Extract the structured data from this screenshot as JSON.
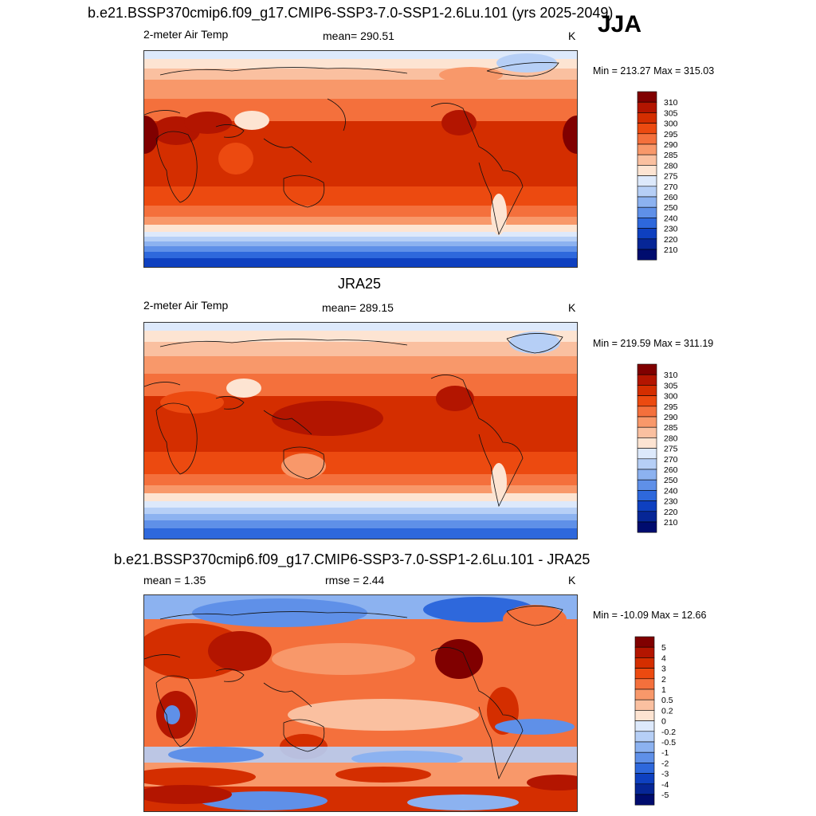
{
  "header": {
    "title": "b.e21.BSSP370cmip6.f09_g17.CMIP6-SSP3-7.0-SSP1-2.6Lu.101 (yrs 2025-2049)",
    "season": "JJA"
  },
  "panels": [
    {
      "id": "model",
      "subtitle": "",
      "left_label": "2-meter Air Temp",
      "center_label": "mean= 290.51",
      "unit": "K",
      "minmax": "Min = 213.27 Max = 315.03"
    },
    {
      "id": "obs",
      "subtitle": "JRA25",
      "left_label": "2-meter Air Temp",
      "center_label": "mean= 289.15",
      "unit": "K",
      "minmax": "Min = 219.59 Max = 311.19"
    },
    {
      "id": "diff",
      "subtitle": "b.e21.BSSP370cmip6.f09_g17.CMIP6-SSP3-7.0-SSP1-2.6Lu.101 - JRA25",
      "left_label": "mean =   1.35",
      "center_label": "rmse =   2.44",
      "unit": "K",
      "minmax": "Min = -10.09 Max =  12.66"
    }
  ],
  "colorbars": {
    "temperature": {
      "labels": [
        "310",
        "305",
        "300",
        "295",
        "290",
        "285",
        "280",
        "275",
        "270",
        "260",
        "250",
        "240",
        "230",
        "220",
        "210"
      ],
      "colors": [
        "#800000",
        "#b31500",
        "#d42e00",
        "#ec4a10",
        "#f4703c",
        "#f8986a",
        "#fac0a0",
        "#fde4d2",
        "#dde9fb",
        "#b6cff6",
        "#8cb2f0",
        "#5f90e8",
        "#2e68dc",
        "#0e40c0",
        "#062696",
        "#000c6e"
      ]
    },
    "difference": {
      "labels": [
        "5",
        "4",
        "3",
        "2",
        "1",
        "0.5",
        "0.2",
        "0",
        "-0.2",
        "-0.5",
        "-1",
        "-2",
        "-3",
        "-4",
        "-5"
      ],
      "colors": [
        "#800000",
        "#b31500",
        "#d42e00",
        "#ec4a10",
        "#f4703c",
        "#f8986a",
        "#fac0a0",
        "#fde4d2",
        "#dde9fb",
        "#b6cff6",
        "#8cb2f0",
        "#5f90e8",
        "#2e68dc",
        "#0e40c0",
        "#062696",
        "#000c6e"
      ]
    }
  }
}
